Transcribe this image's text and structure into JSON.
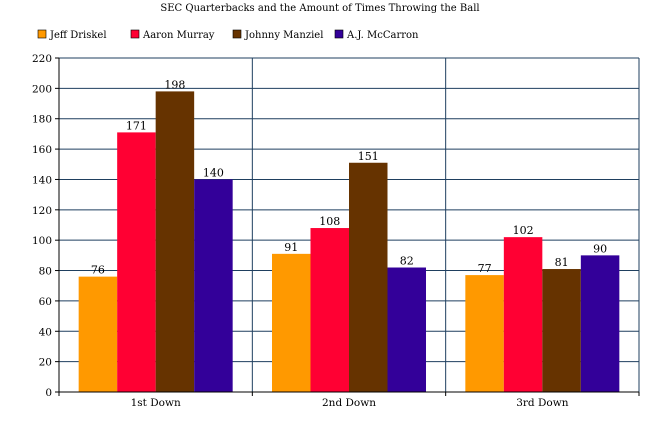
{
  "chart_data": {
    "type": "bar",
    "title": "SEC Quarterbacks and the Amount of Times Throwing the Ball",
    "xlabel": "",
    "ylabel": "",
    "categories": [
      "1st Down",
      "2nd Down",
      "3rd Down"
    ],
    "series": [
      {
        "name": "Jeff Driskel",
        "color": "#FF9900",
        "values": [
          76,
          91,
          77
        ]
      },
      {
        "name": "Aaron Murray",
        "color": "#FF0033",
        "values": [
          171,
          108,
          102
        ]
      },
      {
        "name": "Johnny Manziel",
        "color": "#663300",
        "values": [
          198,
          151,
          81
        ]
      },
      {
        "name": "A.J. McCarron",
        "color": "#330099",
        "values": [
          140,
          82,
          90
        ]
      }
    ],
    "ylim": [
      0,
      220
    ],
    "yticks": [
      0,
      20,
      40,
      60,
      80,
      100,
      120,
      140,
      160,
      180,
      200,
      220
    ],
    "grid": true,
    "legend_position": "top-left",
    "grid_color": "#1F3F5F"
  }
}
